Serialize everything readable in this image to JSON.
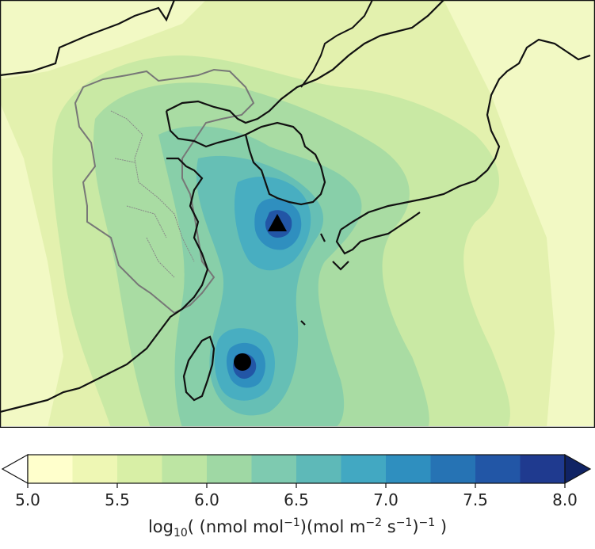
{
  "colorbar": {
    "ticks": [
      "5.0",
      "5.5",
      "6.0",
      "6.5",
      "7.0",
      "7.5",
      "8.0"
    ],
    "levels": [
      5.0,
      5.25,
      5.5,
      5.75,
      6.0,
      6.25,
      6.5,
      6.75,
      7.0,
      7.25,
      7.5,
      7.75,
      8.0
    ],
    "colors": [
      "#ffffcc",
      "#eef7b4",
      "#d8efa6",
      "#bde5a3",
      "#9fd8a4",
      "#7ecab0",
      "#5eb9b8",
      "#42a8c2",
      "#2f8fbf",
      "#2673b4",
      "#2256a6",
      "#1f3a8f",
      "#102364"
    ],
    "extend": "both",
    "label_prefix": "log",
    "label_sub": "10",
    "label_body_1": "( (nmol mol",
    "label_sup_1": "−1",
    "label_body_2": ")(mol m",
    "label_sup_2": "−2",
    "label_body_3": " s",
    "label_sup_3": "−1",
    "label_body_4": ")",
    "label_sup_4": "−1",
    "label_body_5": " )"
  },
  "markers": [
    {
      "name": "triangle-station",
      "shape": "triangle",
      "color": "#000000"
    },
    {
      "name": "circle-station",
      "shape": "circle",
      "color": "#000000"
    }
  ],
  "colors": {
    "coastline": "#111111",
    "province-border": "#777777",
    "background": "#ffffff"
  }
}
